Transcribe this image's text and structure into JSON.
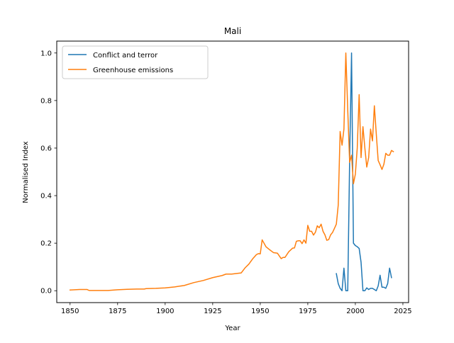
{
  "chart_data": {
    "type": "line",
    "title": "Mali",
    "xlabel": "Year",
    "ylabel": "Normalised Index",
    "xlim": [
      1843,
      2028
    ],
    "ylim": [
      -0.05,
      1.05
    ],
    "xticks": [
      1850,
      1875,
      1900,
      1925,
      1950,
      1975,
      2000,
      2025
    ],
    "yticks": [
      0.0,
      0.2,
      0.4,
      0.6,
      0.8,
      1.0
    ],
    "xtick_labels": [
      "1850",
      "1875",
      "1900",
      "1925",
      "1950",
      "1975",
      "2000",
      "2025"
    ],
    "ytick_labels": [
      "0.0",
      "0.2",
      "0.4",
      "0.6",
      "0.8",
      "1.0"
    ],
    "grid": false,
    "legend_position": "top-left",
    "series": [
      {
        "name": "Conflict and terror",
        "color": "#1f77b4",
        "x": [
          1990,
          1991,
          1992,
          1993,
          1994,
          1995,
          1996,
          1997,
          1998,
          1999,
          2000,
          2001,
          2002,
          2003,
          2004,
          2005,
          2006,
          2007,
          2008,
          2009,
          2010,
          2011,
          2012,
          2013,
          2014,
          2015,
          2016,
          2017,
          2018,
          2019
        ],
        "y": [
          0.072,
          0.03,
          0.01,
          0.0,
          0.095,
          0.0,
          0.0,
          0.55,
          1.0,
          0.2,
          0.19,
          0.185,
          0.178,
          0.12,
          0.0,
          0.0,
          0.012,
          0.005,
          0.01,
          0.01,
          0.005,
          0.0,
          0.02,
          0.065,
          0.015,
          0.015,
          0.01,
          0.03,
          0.095,
          0.055
        ]
      },
      {
        "name": "Greenhouse emissions",
        "color": "#ff7f0e",
        "x": [
          1850,
          1855,
          1859,
          1860,
          1865,
          1870,
          1875,
          1880,
          1885,
          1889,
          1890,
          1895,
          1900,
          1905,
          1910,
          1915,
          1920,
          1925,
          1930,
          1932,
          1935,
          1938,
          1940,
          1942,
          1944,
          1946,
          1948,
          1949,
          1950,
          1951,
          1953,
          1955,
          1957,
          1959,
          1961,
          1962,
          1963,
          1965,
          1967,
          1968,
          1969,
          1970,
          1971,
          1972,
          1973,
          1974,
          1975,
          1976,
          1977,
          1978,
          1979,
          1980,
          1981,
          1982,
          1983,
          1984,
          1985,
          1986,
          1987,
          1988,
          1989,
          1990,
          1991,
          1992,
          1993,
          1994,
          1995,
          1996,
          1997,
          1998,
          1999,
          2000,
          2001,
          2002,
          2003,
          2004,
          2005,
          2006,
          2007,
          2008,
          2009,
          2010,
          2011,
          2012,
          2013,
          2014,
          2015,
          2016,
          2017,
          2018,
          2019,
          2020
        ],
        "y": [
          0.003,
          0.005,
          0.005,
          0.001,
          0.001,
          0.001,
          0.004,
          0.006,
          0.007,
          0.007,
          0.009,
          0.01,
          0.012,
          0.016,
          0.022,
          0.034,
          0.043,
          0.055,
          0.064,
          0.07,
          0.07,
          0.073,
          0.075,
          0.096,
          0.112,
          0.134,
          0.152,
          0.156,
          0.155,
          0.214,
          0.185,
          0.172,
          0.16,
          0.158,
          0.135,
          0.14,
          0.14,
          0.164,
          0.179,
          0.18,
          0.208,
          0.21,
          0.21,
          0.198,
          0.214,
          0.2,
          0.275,
          0.25,
          0.25,
          0.234,
          0.246,
          0.273,
          0.265,
          0.28,
          0.25,
          0.235,
          0.212,
          0.215,
          0.235,
          0.245,
          0.262,
          0.28,
          0.36,
          0.67,
          0.612,
          0.68,
          1.0,
          0.76,
          0.54,
          0.57,
          0.45,
          0.49,
          0.6,
          0.825,
          0.56,
          0.69,
          0.6,
          0.52,
          0.56,
          0.68,
          0.63,
          0.778,
          0.66,
          0.548,
          0.53,
          0.51,
          0.532,
          0.578,
          0.57,
          0.57,
          0.59,
          0.585
        ]
      }
    ]
  }
}
